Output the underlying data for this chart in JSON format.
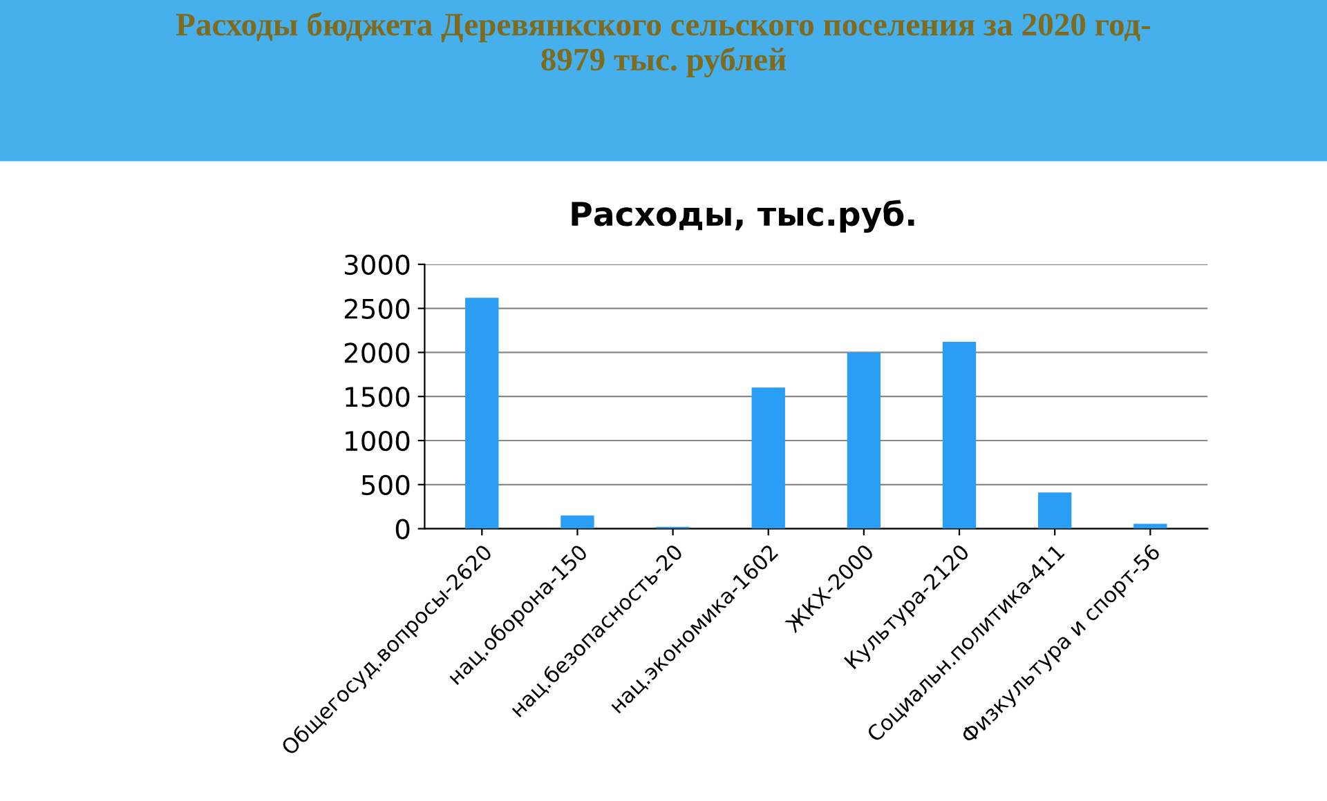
{
  "chart_data": {
    "type": "bar",
    "title": "Расходы бюджета Деревянкского сельского поселения за 2020 год-\n8979 тыс. рублей",
    "subtitle": "Расходы, тыс.руб.",
    "categories": [
      "Общегосуд.вопросы-2620",
      "нац.оборона-150",
      "нац.безопасность-20",
      "нац.экономика-1602",
      "ЖКХ-2000",
      "Культура-2120",
      "Социальн.политика-411",
      "Физкультура и спорт-56"
    ],
    "values": [
      2620,
      150,
      20,
      1602,
      2000,
      2120,
      411,
      56
    ],
    "color": "#2a9df4",
    "ylim": [
      0,
      3000
    ],
    "yticks": [
      0,
      500,
      1000,
      1500,
      2000,
      2500,
      3000
    ],
    "grid": "y"
  }
}
